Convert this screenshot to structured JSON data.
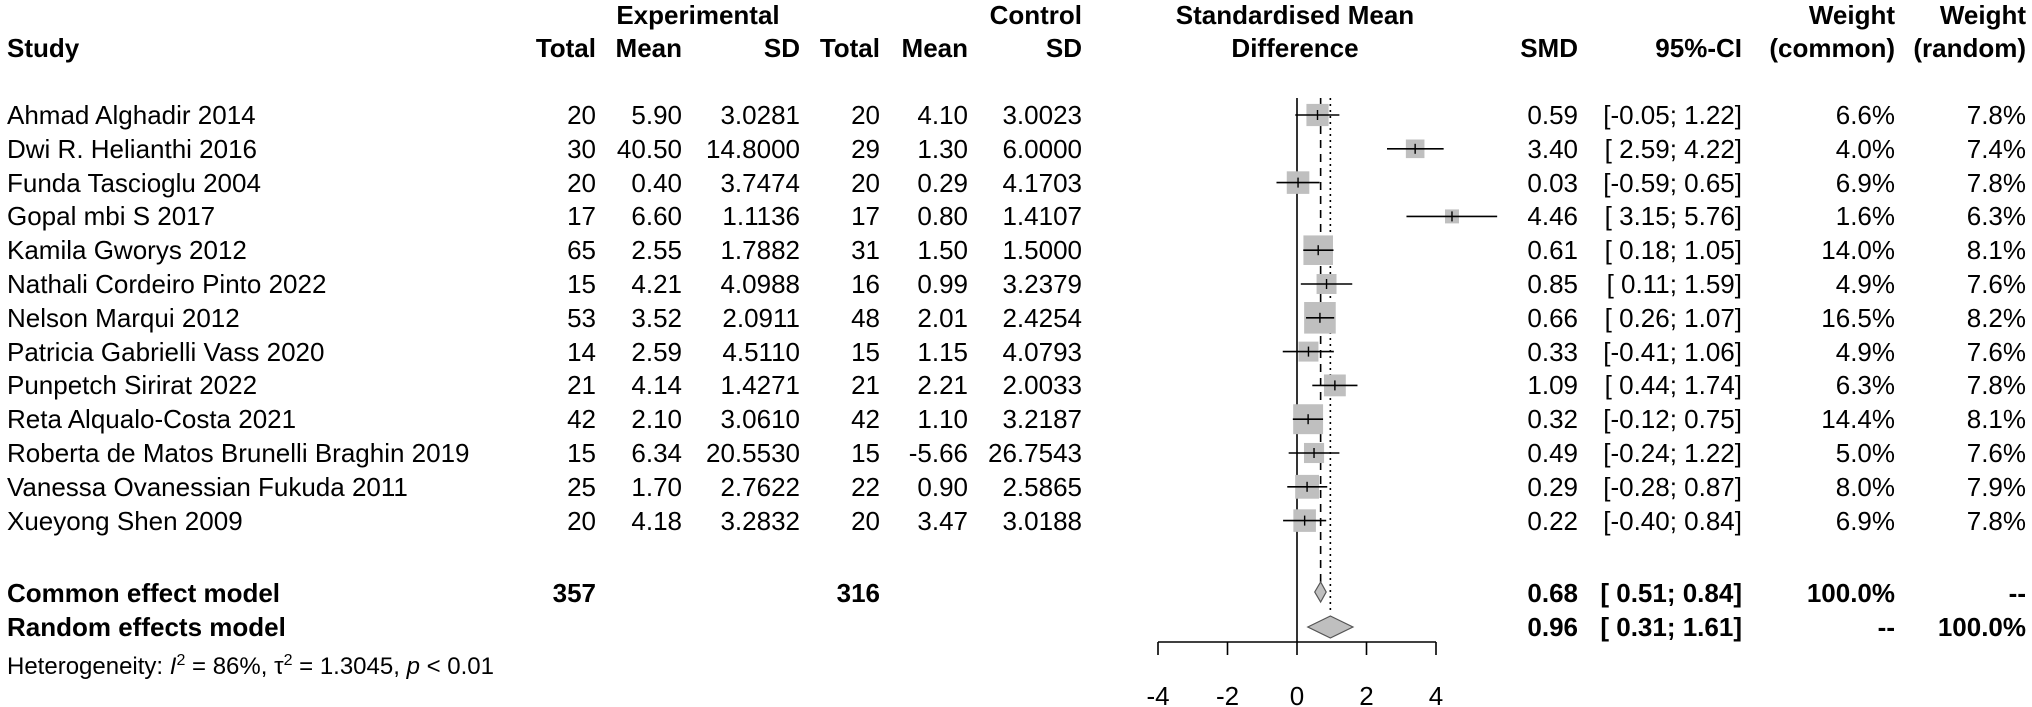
{
  "chart_data": {
    "type": "forest",
    "headers": {
      "study": "Study",
      "experimental_group": "Experimental",
      "control_group": "Control",
      "total": "Total",
      "mean": "Mean",
      "sd": "SD",
      "effect_line1": "Standardised Mean",
      "effect_line2": "Difference",
      "smd": "SMD",
      "ci": "95%-CI",
      "weight": "Weight",
      "weight_common": "(common)",
      "weight_random": "(random)"
    },
    "studies": [
      {
        "study": "Ahmad Alghadir 2014",
        "e_total": "20",
        "e_mean": "5.90",
        "e_sd": "3.0281",
        "c_total": "20",
        "c_mean": "4.10",
        "c_sd": "3.0023",
        "smd": 0.59,
        "ci_low": -0.05,
        "ci_high": 1.22,
        "smd_text": "0.59",
        "ci_text": "[-0.05; 1.22]",
        "w_common": "6.6%",
        "w_random": "7.8%",
        "w_common_value": 6.6
      },
      {
        "study": "Dwi R. Helianthi 2016",
        "e_total": "30",
        "e_mean": "40.50",
        "e_sd": "14.8000",
        "c_total": "29",
        "c_mean": "1.30",
        "c_sd": "6.0000",
        "smd": 3.4,
        "ci_low": 2.59,
        "ci_high": 4.22,
        "smd_text": "3.40",
        "ci_text": "[ 2.59; 4.22]",
        "w_common": "4.0%",
        "w_random": "7.4%",
        "w_common_value": 4.0
      },
      {
        "study": "Funda Tascioglu 2004",
        "e_total": "20",
        "e_mean": "0.40",
        "e_sd": "3.7474",
        "c_total": "20",
        "c_mean": "0.29",
        "c_sd": "4.1703",
        "smd": 0.03,
        "ci_low": -0.59,
        "ci_high": 0.65,
        "smd_text": "0.03",
        "ci_text": "[-0.59; 0.65]",
        "w_common": "6.9%",
        "w_random": "7.8%",
        "w_common_value": 6.9
      },
      {
        "study": "Gopal mbi S 2017",
        "e_total": "17",
        "e_mean": "6.60",
        "e_sd": "1.1136",
        "c_total": "17",
        "c_mean": "0.80",
        "c_sd": "1.4107",
        "smd": 4.46,
        "ci_low": 3.15,
        "ci_high": 5.76,
        "smd_text": "4.46",
        "ci_text": "[ 3.15; 5.76]",
        "w_common": "1.6%",
        "w_random": "6.3%",
        "w_common_value": 1.6
      },
      {
        "study": "Kamila Gworys 2012",
        "e_total": "65",
        "e_mean": "2.55",
        "e_sd": "1.7882",
        "c_total": "31",
        "c_mean": "1.50",
        "c_sd": "1.5000",
        "smd": 0.61,
        "ci_low": 0.18,
        "ci_high": 1.05,
        "smd_text": "0.61",
        "ci_text": "[ 0.18; 1.05]",
        "w_common": "14.0%",
        "w_random": "8.1%",
        "w_common_value": 14.0
      },
      {
        "study": "Nathali Cordeiro Pinto 2022",
        "e_total": "15",
        "e_mean": "4.21",
        "e_sd": "4.0988",
        "c_total": "16",
        "c_mean": "0.99",
        "c_sd": "3.2379",
        "smd": 0.85,
        "ci_low": 0.11,
        "ci_high": 1.59,
        "smd_text": "0.85",
        "ci_text": "[ 0.11; 1.59]",
        "w_common": "4.9%",
        "w_random": "7.6%",
        "w_common_value": 4.9
      },
      {
        "study": "Nelson Marqui 2012",
        "e_total": "53",
        "e_mean": "3.52",
        "e_sd": "2.0911",
        "c_total": "48",
        "c_mean": "2.01",
        "c_sd": "2.4254",
        "smd": 0.66,
        "ci_low": 0.26,
        "ci_high": 1.07,
        "smd_text": "0.66",
        "ci_text": "[ 0.26; 1.07]",
        "w_common": "16.5%",
        "w_random": "8.2%",
        "w_common_value": 16.5
      },
      {
        "study": "Patricia Gabrielli Vass 2020",
        "e_total": "14",
        "e_mean": "2.59",
        "e_sd": "4.5110",
        "c_total": "15",
        "c_mean": "1.15",
        "c_sd": "4.0793",
        "smd": 0.33,
        "ci_low": -0.41,
        "ci_high": 1.06,
        "smd_text": "0.33",
        "ci_text": "[-0.41; 1.06]",
        "w_common": "4.9%",
        "w_random": "7.6%",
        "w_common_value": 4.9
      },
      {
        "study": "Punpetch Sirirat 2022",
        "e_total": "21",
        "e_mean": "4.14",
        "e_sd": "1.4271",
        "c_total": "21",
        "c_mean": "2.21",
        "c_sd": "2.0033",
        "smd": 1.09,
        "ci_low": 0.44,
        "ci_high": 1.74,
        "smd_text": "1.09",
        "ci_text": "[ 0.44; 1.74]",
        "w_common": "6.3%",
        "w_random": "7.8%",
        "w_common_value": 6.3
      },
      {
        "study": "Reta Alqualo-Costa 2021",
        "e_total": "42",
        "e_mean": "2.10",
        "e_sd": "3.0610",
        "c_total": "42",
        "c_mean": "1.10",
        "c_sd": "3.2187",
        "smd": 0.32,
        "ci_low": -0.12,
        "ci_high": 0.75,
        "smd_text": "0.32",
        "ci_text": "[-0.12; 0.75]",
        "w_common": "14.4%",
        "w_random": "8.1%",
        "w_common_value": 14.4
      },
      {
        "study": "Roberta de Matos Brunelli Braghin 2019",
        "e_total": "15",
        "e_mean": "6.34",
        "e_sd": "20.5530",
        "c_total": "15",
        "c_mean": "-5.66",
        "c_sd": "26.7543",
        "smd": 0.49,
        "ci_low": -0.24,
        "ci_high": 1.22,
        "smd_text": "0.49",
        "ci_text": "[-0.24; 1.22]",
        "w_common": "5.0%",
        "w_random": "7.6%",
        "w_common_value": 5.0
      },
      {
        "study": "Vanessa Ovanessian Fukuda 2011",
        "e_total": "25",
        "e_mean": "1.70",
        "e_sd": "2.7622",
        "c_total": "22",
        "c_mean": "0.90",
        "c_sd": "2.5865",
        "smd": 0.29,
        "ci_low": -0.28,
        "ci_high": 0.87,
        "smd_text": "0.29",
        "ci_text": "[-0.28; 0.87]",
        "w_common": "8.0%",
        "w_random": "7.9%",
        "w_common_value": 8.0
      },
      {
        "study": "Xueyong Shen 2009",
        "e_total": "20",
        "e_mean": "4.18",
        "e_sd": "3.2832",
        "c_total": "20",
        "c_mean": "3.47",
        "c_sd": "3.0188",
        "smd": 0.22,
        "ci_low": -0.4,
        "ci_high": 0.84,
        "smd_text": "0.22",
        "ci_text": "[-0.40; 0.84]",
        "w_common": "6.9%",
        "w_random": "7.8%",
        "w_common_value": 6.9
      }
    ],
    "pooled": [
      {
        "label": "Common effect model",
        "e_total": "357",
        "c_total": "316",
        "smd": 0.68,
        "ci_low": 0.51,
        "ci_high": 0.84,
        "smd_text": "0.68",
        "ci_text": "[ 0.51; 0.84]",
        "w_common": "100.0%",
        "w_random": "--"
      },
      {
        "label": "Random effects model",
        "e_total": "",
        "c_total": "",
        "smd": 0.96,
        "ci_low": 0.31,
        "ci_high": 1.61,
        "smd_text": "0.96",
        "ci_text": "[ 0.31; 1.61]",
        "w_common": "--",
        "w_random": "100.0%"
      }
    ],
    "heterogeneity": {
      "prefix": "Heterogeneity: ",
      "i2_symbol": "I",
      "i2_exp": "2",
      "i2_value": " = 86%, ",
      "tau_symbol": "τ",
      "tau_exp": "2",
      "tau_value": " = 1.3045, ",
      "p_symbol": "p",
      "p_value": " < 0.01"
    },
    "x_axis": {
      "ticks": [
        -4,
        -2,
        0,
        2,
        4
      ],
      "tick_labels": [
        "-4",
        "-2",
        "0",
        "2",
        "4"
      ],
      "range": [
        -4,
        4
      ]
    },
    "reference_line": 0,
    "colors": {
      "square": "#bfbfbf",
      "diamond": "#bfbfbf",
      "line": "#000000"
    }
  }
}
